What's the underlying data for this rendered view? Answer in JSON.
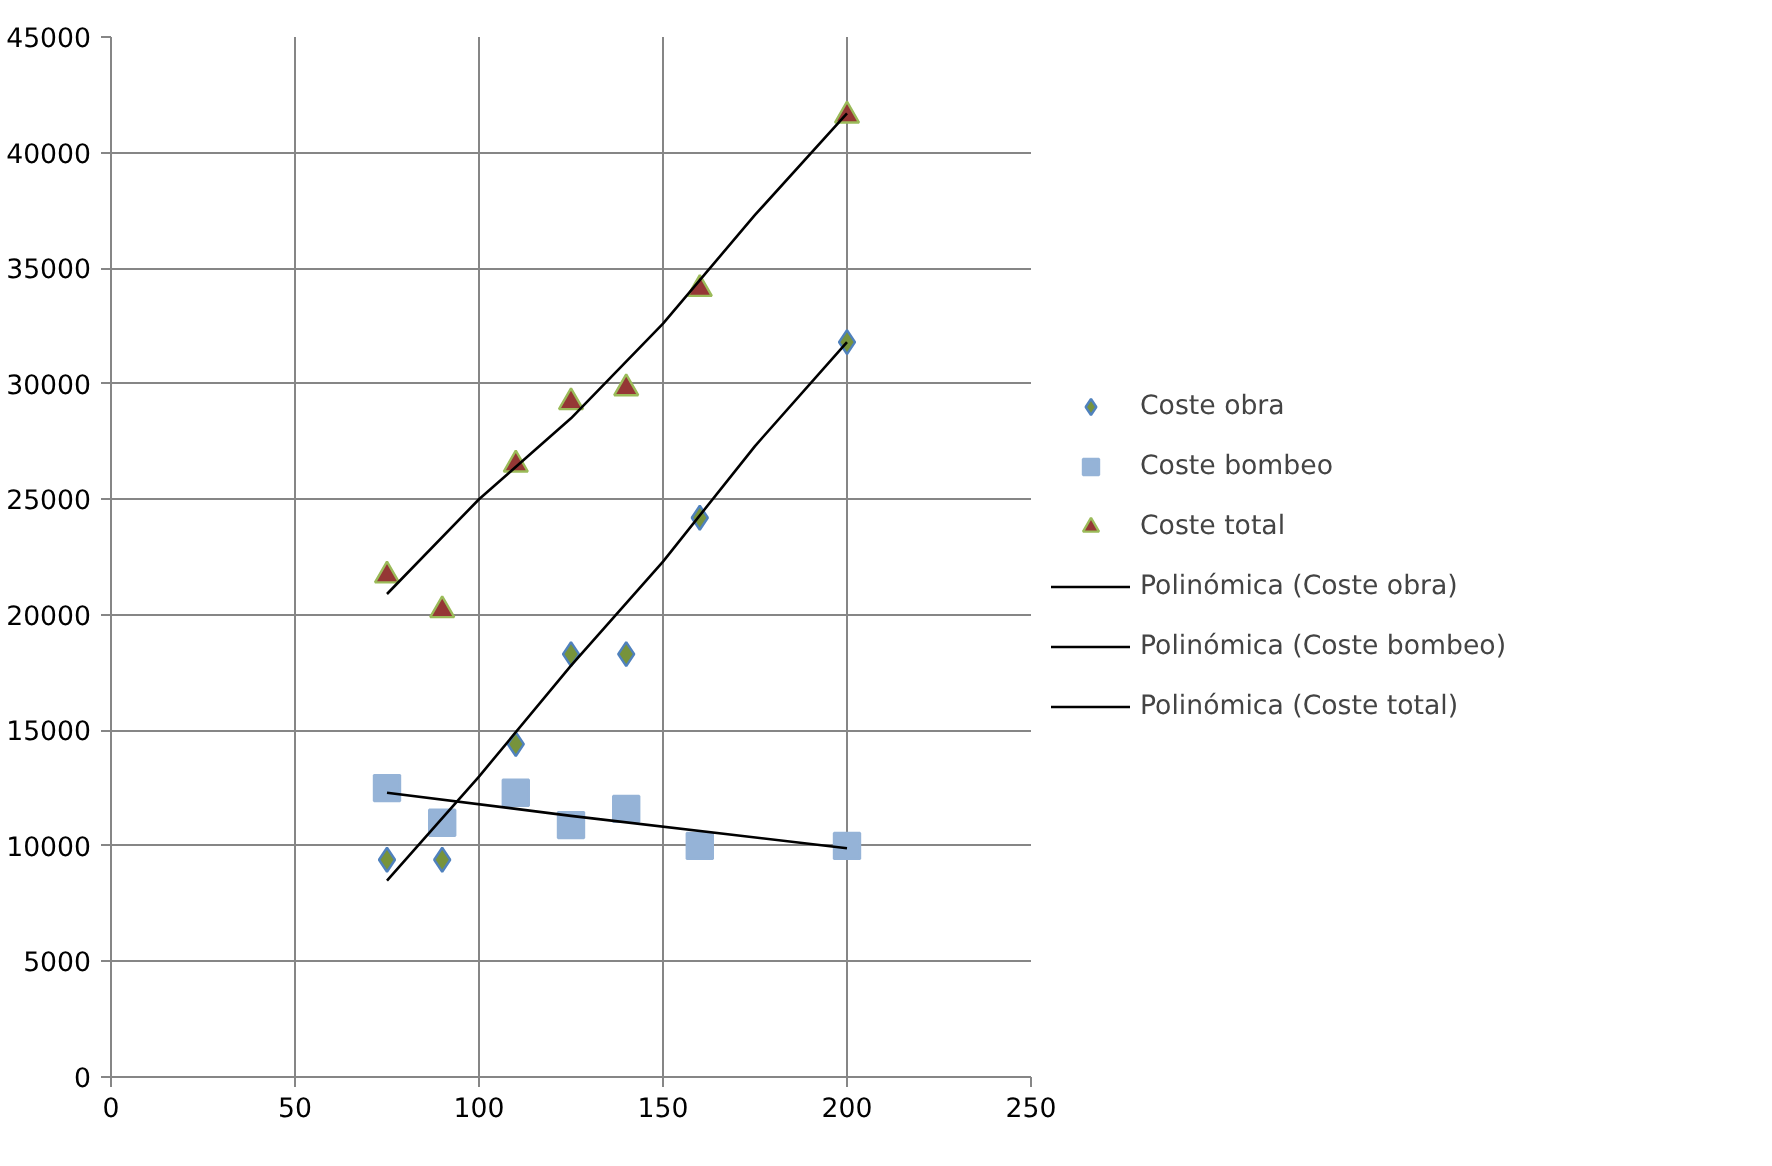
{
  "chart_data": {
    "type": "scatter",
    "xlim": [
      0,
      250
    ],
    "xticks": [
      0,
      50,
      100,
      150,
      200,
      250
    ],
    "ylim": [
      0,
      45000
    ],
    "yticks": [
      0,
      5000,
      10000,
      15000,
      20000,
      25000,
      30000,
      35000,
      40000,
      45000
    ],
    "grid": true,
    "legend": "right",
    "series": [
      {
        "name": "Coste obra",
        "marker": "diamond",
        "color": "#77933c",
        "x": [
          75,
          90,
          110,
          125,
          140,
          160,
          200
        ],
        "values": [
          9400,
          9400,
          14400,
          18300,
          18300,
          24200,
          31800
        ]
      },
      {
        "name": "Coste bombeo",
        "marker": "square",
        "color": "#95b3d7",
        "x": [
          75,
          90,
          110,
          125,
          140,
          160,
          200
        ],
        "values": [
          12500,
          11000,
          12300,
          10900,
          11600,
          10000,
          10000
        ]
      },
      {
        "name": "Coste total",
        "marker": "triangle",
        "color": "#953735",
        "x": [
          75,
          90,
          110,
          125,
          140,
          160,
          200
        ],
        "values": [
          21700,
          20200,
          26500,
          29200,
          29800,
          34100,
          41600
        ]
      },
      {
        "name": "Polinómica (Coste obra)",
        "type": "line",
        "line_style": "solid",
        "color": "#000000",
        "x": [
          75,
          100,
          125,
          150,
          175,
          200
        ],
        "values": [
          8500,
          13000,
          17800,
          22300,
          27300,
          31800
        ]
      },
      {
        "name": "Polinómica (Coste bombeo)",
        "type": "line",
        "line_style": "solid",
        "color": "#000000",
        "x": [
          75,
          125,
          200
        ],
        "values": [
          12300,
          11300,
          9900
        ]
      },
      {
        "name": "Polinómica (Coste total)",
        "type": "line",
        "line_style": "solid",
        "color": "#000000",
        "x": [
          75,
          100,
          125,
          150,
          175,
          200
        ],
        "values": [
          20900,
          25000,
          28500,
          32600,
          37300,
          41700
        ]
      }
    ]
  }
}
